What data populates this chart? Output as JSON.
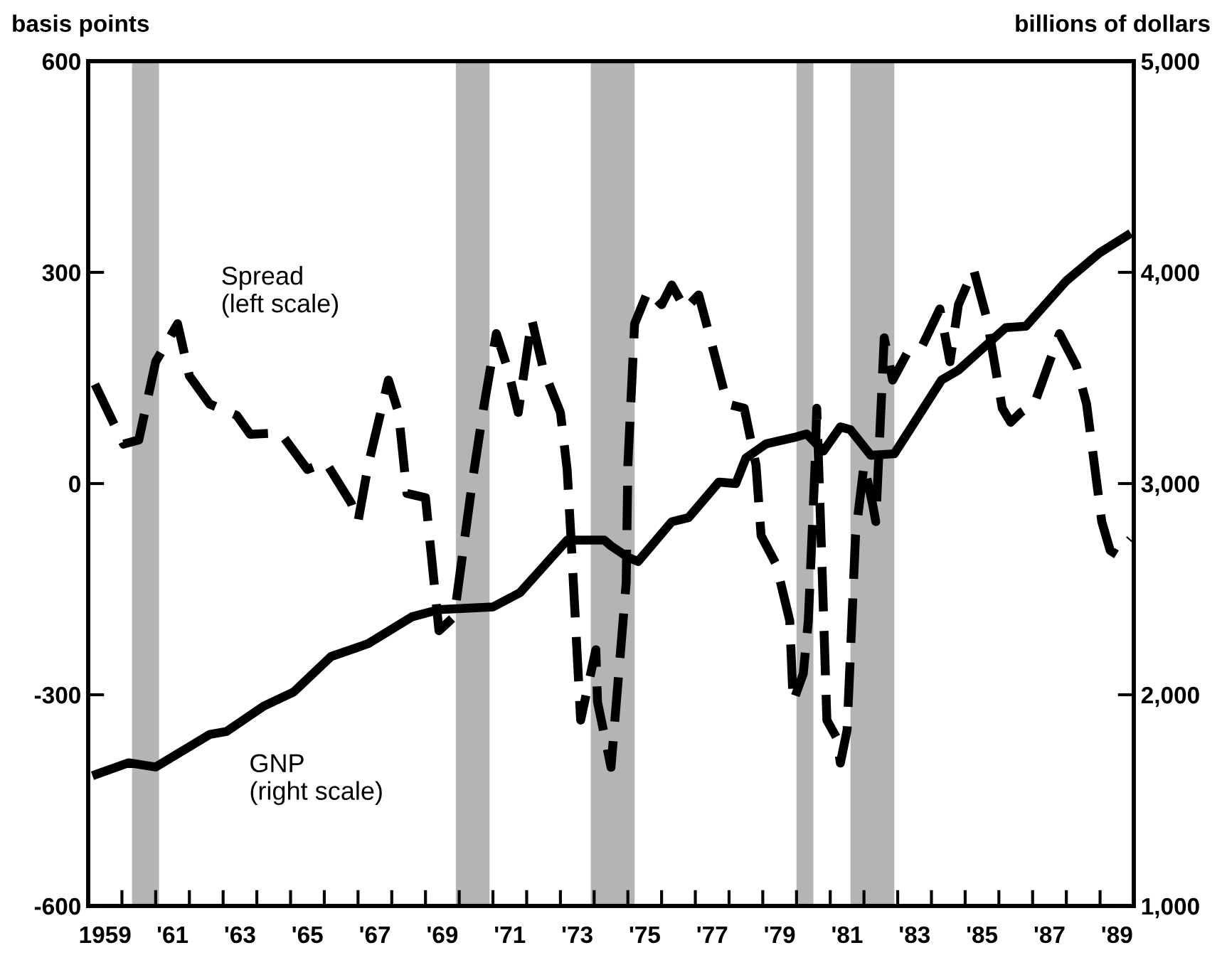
{
  "chart_data": {
    "type": "line",
    "ylabel": "basis points",
    "y2label": "billions of dollars",
    "xlim": [
      1958.5,
      1989.5
    ],
    "xticks": [
      {
        "value": 1959,
        "label": "1959"
      },
      {
        "value": 1961,
        "label": "'61"
      },
      {
        "value": 1963,
        "label": "'63"
      },
      {
        "value": 1965,
        "label": "'65"
      },
      {
        "value": 1967,
        "label": "'67"
      },
      {
        "value": 1969,
        "label": "'69"
      },
      {
        "value": 1971,
        "label": "'71"
      },
      {
        "value": 1973,
        "label": "'73"
      },
      {
        "value": 1975,
        "label": "'75"
      },
      {
        "value": 1977,
        "label": "'77"
      },
      {
        "value": 1979,
        "label": "'79"
      },
      {
        "value": 1981,
        "label": "'81"
      },
      {
        "value": 1983,
        "label": "'83"
      },
      {
        "value": 1985,
        "label": "'85"
      },
      {
        "value": 1987,
        "label": "'87"
      },
      {
        "value": 1989,
        "label": "'89"
      },
      {
        "value": 1959.5,
        "label": null
      },
      {
        "value": 1960.5,
        "label": null
      },
      {
        "value": 1961.5,
        "label": null
      },
      {
        "value": 1962.5,
        "label": null
      },
      {
        "value": 1963.5,
        "label": null
      },
      {
        "value": 1964.5,
        "label": null
      },
      {
        "value": 1965.5,
        "label": null
      },
      {
        "value": 1966.5,
        "label": null
      },
      {
        "value": 1967.5,
        "label": null
      },
      {
        "value": 1968.5,
        "label": null
      },
      {
        "value": 1969.5,
        "label": null
      },
      {
        "value": 1970.5,
        "label": null
      },
      {
        "value": 1971.5,
        "label": null
      },
      {
        "value": 1972.5,
        "label": null
      },
      {
        "value": 1973.5,
        "label": null
      },
      {
        "value": 1974.5,
        "label": null
      },
      {
        "value": 1975.5,
        "label": null
      },
      {
        "value": 1976.5,
        "label": null
      },
      {
        "value": 1977.5,
        "label": null
      },
      {
        "value": 1978.5,
        "label": null
      },
      {
        "value": 1979.5,
        "label": null
      },
      {
        "value": 1980.5,
        "label": null
      },
      {
        "value": 1981.5,
        "label": null
      },
      {
        "value": 1982.5,
        "label": null
      },
      {
        "value": 1983.5,
        "label": null
      },
      {
        "value": 1984.5,
        "label": null
      },
      {
        "value": 1985.5,
        "label": null
      },
      {
        "value": 1986.5,
        "label": null
      },
      {
        "value": 1987.5,
        "label": null
      },
      {
        "value": 1988.5,
        "label": null
      }
    ],
    "ylim": [
      -600,
      600
    ],
    "yticks": [
      -600,
      -300,
      0,
      300,
      600
    ],
    "y2lim": [
      1000,
      5000
    ],
    "y2ticks": [
      {
        "value": 1000,
        "label": "1,000"
      },
      {
        "value": 2000,
        "label": "2,000"
      },
      {
        "value": 3000,
        "label": "3,000"
      },
      {
        "value": 4000,
        "label": "4,000"
      },
      {
        "value": 5000,
        "label": "5,000"
      }
    ],
    "grid": false,
    "legend": false,
    "bands": [
      {
        "axis": "x",
        "from": 1959.8,
        "to": 1960.6,
        "color": "#b4b4b4"
      },
      {
        "axis": "x",
        "from": 1969.4,
        "to": 1970.4,
        "color": "#b4b4b4"
      },
      {
        "axis": "x",
        "from": 1973.4,
        "to": 1974.7,
        "color": "#b4b4b4"
      },
      {
        "axis": "x",
        "from": 1979.5,
        "to": 1980.0,
        "color": "#b4b4b4"
      },
      {
        "axis": "x",
        "from": 1981.1,
        "to": 1982.4,
        "color": "#b4b4b4"
      }
    ],
    "series": [
      {
        "color": "#000000",
        "line_style": "dashed",
        "x": [
          1958.7,
          1959.55,
          1960.0,
          1960.5,
          1961.15,
          1961.5,
          1962.1,
          1962.9,
          1963.3,
          1964.2,
          1965.0,
          1965.55,
          1966.3,
          1966.5,
          1966.8,
          1967.4,
          1967.7,
          1967.95,
          1968.5,
          1968.9,
          1969.35,
          1969.9,
          1970.2,
          1970.6,
          1970.95,
          1971.25,
          1971.45,
          1971.65,
          1972.0,
          1972.5,
          1972.7,
          1972.85,
          1973.1,
          1973.55,
          1973.6,
          1973.95,
          1974.0,
          1974.45,
          1974.5,
          1974.7,
          1975.1,
          1975.5,
          1975.8,
          1976.2,
          1976.6,
          1977.05,
          1977.45,
          1977.95,
          1978.3,
          1978.45,
          1978.9,
          1979.3,
          1979.4,
          1979.7,
          1979.85,
          1980.05,
          1980.1,
          1980.25,
          1980.4,
          1980.7,
          1980.8,
          1981.0,
          1981.25,
          1981.5,
          1981.75,
          1981.85,
          1982.1,
          1982.35,
          1982.8,
          1983.2,
          1983.75,
          1984.05,
          1984.3,
          1984.75,
          1985.15,
          1985.6,
          1985.85,
          1986.15,
          1986.55,
          1987.3,
          1987.8,
          1988.1,
          1988.55,
          1988.8,
          1989.0,
          1989.4
        ],
        "values": [
          141,
          56,
          62,
          173,
          227,
          153,
          113,
          97,
          70,
          72,
          20,
          30,
          -28,
          -54,
          26,
          147,
          101,
          -14,
          -20,
          -209,
          -189,
          6,
          101,
          213,
          161,
          101,
          167,
          233,
          161,
          101,
          20,
          -109,
          -336,
          -236,
          -310,
          -391,
          -403,
          -141,
          26,
          227,
          274,
          254,
          282,
          248,
          268,
          187,
          113,
          107,
          26,
          -74,
          -115,
          -195,
          -310,
          -270,
          -195,
          26,
          107,
          -109,
          -336,
          -362,
          -397,
          -350,
          -74,
          26,
          -28,
          -54,
          207,
          147,
          187,
          193,
          248,
          173,
          254,
          304,
          233,
          107,
          87,
          101,
          113,
          213,
          167,
          113,
          -54,
          -95,
          -101,
          -79
        ]
      },
      {
        "color": "#000000",
        "line_style": "solid",
        "axis": "y2",
        "x": [
          1958.75,
          1959.7,
          1960.5,
          1961.2,
          1962.1,
          1962.6,
          1963.7,
          1964.6,
          1965.7,
          1966.8,
          1968.1,
          1968.9,
          1970.5,
          1971.3,
          1972.7,
          1973.8,
          1974.0,
          1974.5,
          1974.8,
          1975.8,
          1976.3,
          1977.2,
          1977.7,
          1978.0,
          1978.6,
          1979.5,
          1979.8,
          1980.3,
          1980.8,
          1981.1,
          1981.7,
          1982.4,
          1983.8,
          1984.3,
          1985.7,
          1986.3,
          1987.5,
          1988.5,
          1989.3
        ],
        "values": [
          1624,
          1678,
          1658,
          1725,
          1812,
          1826,
          1946,
          2014,
          2181,
          2242,
          2369,
          2403,
          2416,
          2483,
          2732,
          2732,
          2705,
          2651,
          2631,
          2819,
          2839,
          3007,
          3000,
          3121,
          3188,
          3221,
          3235,
          3154,
          3268,
          3255,
          3134,
          3141,
          3490,
          3537,
          3738,
          3745,
          3960,
          4094,
          4174
        ]
      }
    ],
    "annotations": [
      "Spread\n(left scale)",
      "GNP\n(right scale)"
    ]
  }
}
